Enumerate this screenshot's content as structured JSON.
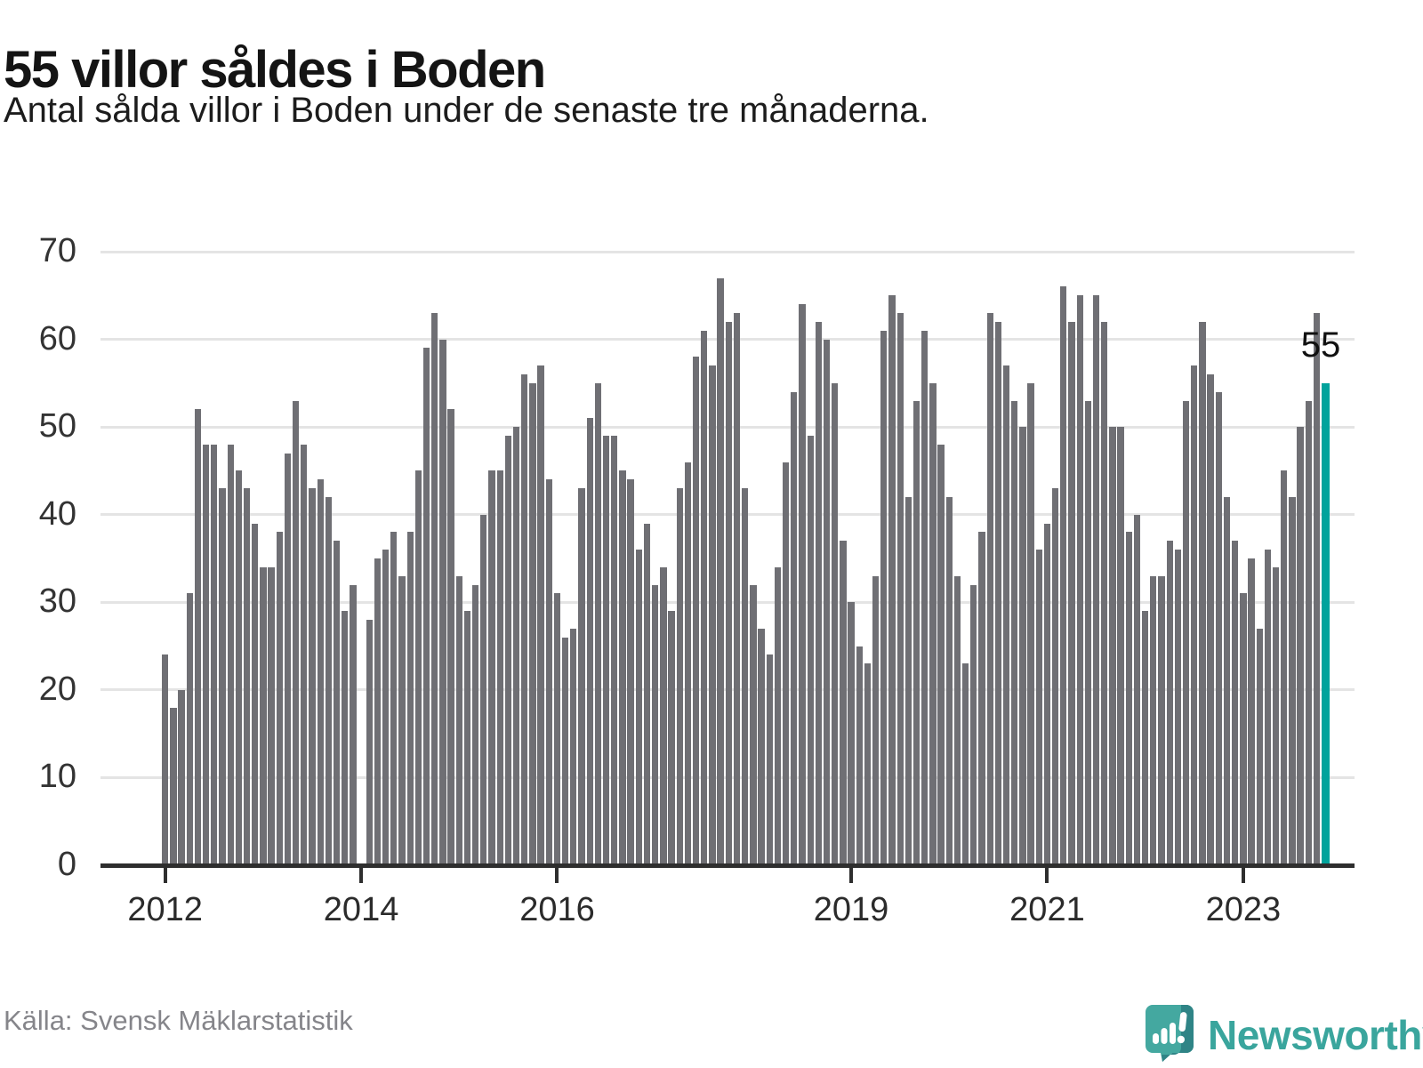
{
  "title": "55 villor såldes i Boden",
  "subtitle": "Antal sålda villor i Boden under de senaste tre månaderna.",
  "source": "Källa: Svensk Mäklarstatistik",
  "brand": {
    "name": "Newsworthy",
    "icon": "bar-chart-speech-bubble-icon",
    "color": "#3aa59d"
  },
  "colors": {
    "bar": "#6f6f74",
    "highlight": "#00a39c",
    "grid": "#e4e4e4",
    "axis": "#2e2e2e",
    "text": "#1a1a1a",
    "muted": "#85858a"
  },
  "chart_data": {
    "type": "bar",
    "title": "55 villor såldes i Boden",
    "subtitle": "Antal sålda villor i Boden under de senaste tre månaderna.",
    "ylabel": "",
    "xlabel": "",
    "ylim": [
      0,
      70
    ],
    "grid": "horizontal",
    "y_ticks": [
      0,
      10,
      20,
      30,
      40,
      50,
      60,
      70
    ],
    "x_start_month": "2012-01",
    "x_end_month": "2023-11",
    "note": "monthly bars, rolling 3-month sales; no bar (missing) at 2014-01",
    "values": [
      24,
      18,
      20,
      31,
      52,
      48,
      48,
      43,
      48,
      45,
      43,
      39,
      34,
      34,
      38,
      47,
      53,
      48,
      43,
      44,
      42,
      37,
      29,
      32,
      null,
      28,
      35,
      36,
      38,
      33,
      38,
      45,
      59,
      63,
      60,
      52,
      33,
      29,
      32,
      40,
      45,
      45,
      49,
      50,
      56,
      55,
      57,
      44,
      31,
      26,
      27,
      43,
      51,
      55,
      49,
      49,
      45,
      44,
      36,
      39,
      32,
      34,
      29,
      43,
      46,
      58,
      61,
      57,
      67,
      62,
      63,
      43,
      32,
      27,
      24,
      34,
      46,
      54,
      64,
      49,
      62,
      60,
      55,
      37,
      30,
      25,
      23,
      33,
      61,
      65,
      63,
      42,
      53,
      61,
      55,
      48,
      42,
      33,
      23,
      32,
      38,
      63,
      62,
      57,
      53,
      50,
      55,
      36,
      39,
      43,
      66,
      62,
      65,
      53,
      65,
      62,
      50,
      50,
      38,
      40,
      29,
      33,
      33,
      37,
      36,
      53,
      57,
      62,
      56,
      54,
      42,
      37,
      31,
      35,
      27,
      36,
      34,
      45,
      42,
      50,
      53,
      63,
      55
    ],
    "x_ticks": [
      {
        "label": "2012",
        "month_index": 0
      },
      {
        "label": "2014",
        "month_index": 24
      },
      {
        "label": "2016",
        "month_index": 48
      },
      {
        "label": "2019",
        "month_index": 84
      },
      {
        "label": "2021",
        "month_index": 108
      },
      {
        "label": "2023",
        "month_index": 132
      }
    ],
    "highlight_index": 142,
    "highlight_value": 55,
    "annotation_label": "55"
  }
}
